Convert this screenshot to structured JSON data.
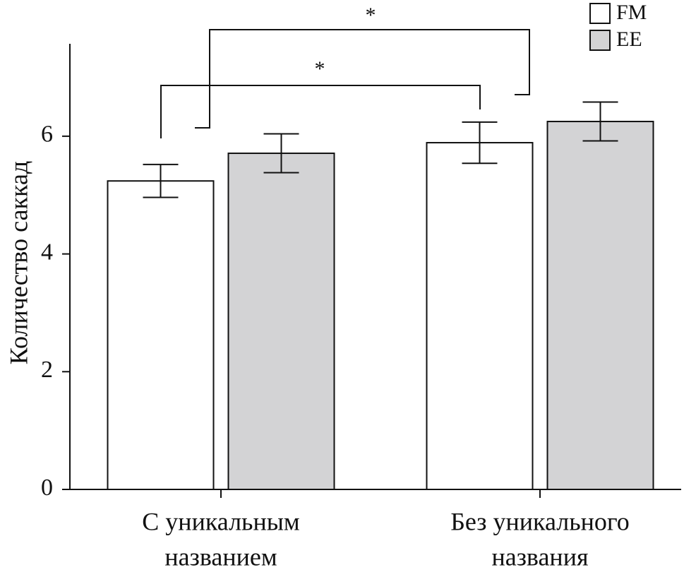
{
  "chart_data": {
    "type": "bar",
    "y_label": "Количество саккад",
    "categories": [
      [
        "С уникальным",
        "названием"
      ],
      [
        "Без уникального",
        "названия"
      ]
    ],
    "series": [
      {
        "name": "FM",
        "color": "#ffffff",
        "values": [
          5.24,
          5.89
        ],
        "errors": [
          0.28,
          0.35
        ]
      },
      {
        "name": "EE",
        "color": "#d3d3d5",
        "values": [
          5.71,
          6.25
        ],
        "errors": [
          0.33,
          0.33
        ]
      }
    ],
    "ylim": [
      0,
      7.57
    ],
    "yticks": [
      0,
      2,
      4,
      6
    ],
    "annotations": [
      "*",
      "*"
    ],
    "legend": "top-right"
  }
}
